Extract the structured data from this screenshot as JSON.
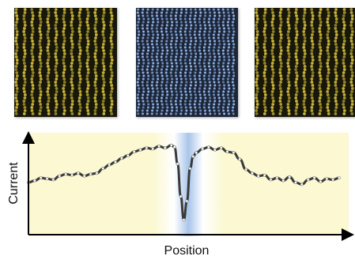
{
  "panels": [
    {
      "name": "left-stripe-image",
      "colors": {
        "bg": "#17170a",
        "dot": "#c9b43a"
      },
      "spacing": 10
    },
    {
      "name": "center-stripe-image",
      "colors": {
        "bg": "#1d2638",
        "dot": "#8fb3e6"
      },
      "spacing": 6
    },
    {
      "name": "right-stripe-image",
      "colors": {
        "bg": "#17170a",
        "dot": "#c9b43a"
      },
      "spacing": 10
    }
  ],
  "chart_data": {
    "type": "line",
    "xlabel": "Position",
    "ylabel": "Current",
    "xlim": [
      0,
      100
    ],
    "ylim": [
      0,
      100
    ],
    "colors": {
      "line": "#3a3a3a",
      "bg_left": "#fbf8d2",
      "bg_mid": "#ffffff",
      "bg_dip": "#a9c5ea",
      "axis": "#000000"
    },
    "highlight_range": [
      47,
      53
    ],
    "series": [
      {
        "x": [
          0,
          2,
          4,
          6,
          8,
          10,
          12,
          14,
          16,
          18,
          20,
          22,
          24,
          26,
          28,
          30,
          32,
          34,
          36,
          38,
          40,
          42,
          44,
          46,
          47,
          48,
          49,
          50,
          51,
          52,
          53,
          54,
          56,
          58,
          60,
          62,
          64,
          66,
          68,
          70,
          72,
          74,
          76,
          78,
          80,
          82,
          84,
          86,
          88,
          90,
          92,
          94,
          96,
          98,
          100
        ],
        "y": [
          50,
          52,
          55,
          54,
          53,
          57,
          59,
          58,
          60,
          57,
          59,
          60,
          65,
          69,
          72,
          76,
          79,
          83,
          85,
          87,
          86,
          89,
          87,
          90,
          88,
          70,
          35,
          10,
          30,
          65,
          78,
          82,
          86,
          88,
          85,
          87,
          83,
          82,
          75,
          64,
          60,
          57,
          58,
          53,
          55,
          52,
          56,
          50,
          48,
          53,
          55,
          51,
          54,
          53,
          55
        ]
      }
    ]
  }
}
